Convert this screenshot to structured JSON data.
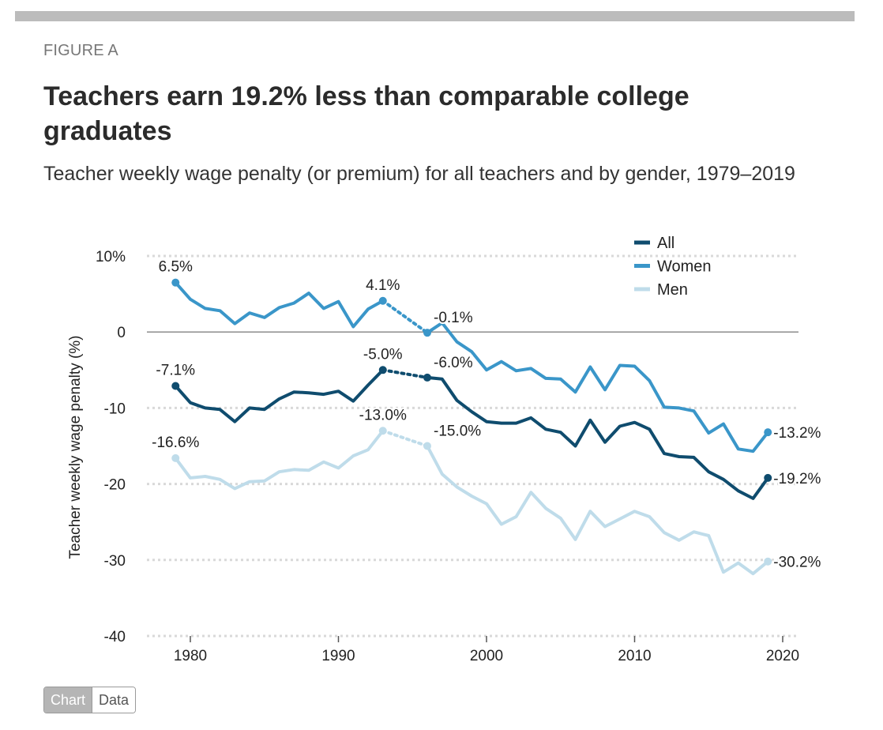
{
  "header": {
    "figure_label": "FIGURE A",
    "title": "Teachers earn 19.2% less than comparable college graduates",
    "subtitle": "Teacher weekly wage penalty (or premium) for all teachers and by gender, 1979–2019"
  },
  "controls": {
    "chart_label": "Chart",
    "data_label": "Data"
  },
  "colors": {
    "all": "#0f4c6e",
    "women": "#3a96c9",
    "men": "#bfdcea",
    "grid": "#d9d9d9",
    "zero": "#8c8c8c"
  },
  "chart_data": {
    "type": "line",
    "title": "Teachers earn 19.2% less than comparable college graduates",
    "xlabel": "",
    "ylabel": "Teacher weekly wage penalty (%)",
    "xlim": [
      1977,
      2022
    ],
    "ylim": [
      -40,
      10
    ],
    "x_ticks": [
      "1980",
      "1990",
      "2000",
      "2010",
      "2020"
    ],
    "x_tick_values": [
      1980,
      1990,
      2000,
      2010,
      2020
    ],
    "y_ticks": [
      "10%",
      "0",
      "-10",
      "-20",
      "-30",
      "-40"
    ],
    "y_tick_values": [
      10,
      0,
      -10,
      -20,
      -30,
      -40
    ],
    "gap_years": [
      1994,
      1995
    ],
    "legend": [
      "All",
      "Women",
      "Men"
    ],
    "legend_position": "top-right",
    "series": [
      {
        "name": "All",
        "key": "all",
        "x": [
          1979,
          1980,
          1981,
          1982,
          1983,
          1984,
          1985,
          1986,
          1987,
          1988,
          1989,
          1990,
          1991,
          1992,
          1993,
          1996,
          1997,
          1998,
          1999,
          2000,
          2001,
          2002,
          2003,
          2004,
          2005,
          2006,
          2007,
          2008,
          2009,
          2010,
          2011,
          2012,
          2013,
          2014,
          2015,
          2016,
          2017,
          2018,
          2019
        ],
        "values": [
          -7.1,
          -9.3,
          -10.0,
          -10.2,
          -11.8,
          -10.0,
          -10.2,
          -8.8,
          -7.9,
          -8.0,
          -8.2,
          -7.8,
          -9.1,
          -7.0,
          -5.0,
          -6.0,
          -6.2,
          -9.0,
          -10.5,
          -11.8,
          -12.0,
          -12.0,
          -11.3,
          -12.8,
          -13.2,
          -15.0,
          -11.6,
          -14.5,
          -12.4,
          -11.9,
          -12.8,
          -16.0,
          -16.4,
          -16.5,
          -18.4,
          -19.4,
          -20.9,
          -21.9,
          -19.2
        ],
        "labels": [
          {
            "x": 1979,
            "text": "-7.1%",
            "pos": "above"
          },
          {
            "x": 1993,
            "text": "-5.0%",
            "pos": "above"
          },
          {
            "x": 1996,
            "text": "-6.0%",
            "pos": "right-above"
          },
          {
            "x": 2019,
            "text": "-19.2%",
            "pos": "right"
          }
        ]
      },
      {
        "name": "Women",
        "key": "women",
        "x": [
          1979,
          1980,
          1981,
          1982,
          1983,
          1984,
          1985,
          1986,
          1987,
          1988,
          1989,
          1990,
          1991,
          1992,
          1993,
          1996,
          1997,
          1998,
          1999,
          2000,
          2001,
          2002,
          2003,
          2004,
          2005,
          2006,
          2007,
          2008,
          2009,
          2010,
          2011,
          2012,
          2013,
          2014,
          2015,
          2016,
          2017,
          2018,
          2019
        ],
        "values": [
          6.5,
          4.3,
          3.1,
          2.8,
          1.1,
          2.5,
          1.9,
          3.2,
          3.8,
          5.1,
          3.1,
          4.0,
          0.7,
          3.0,
          4.1,
          -0.1,
          1.2,
          -1.3,
          -2.6,
          -5.0,
          -3.9,
          -5.1,
          -4.8,
          -6.1,
          -6.2,
          -7.9,
          -4.6,
          -7.6,
          -4.4,
          -4.5,
          -6.4,
          -9.9,
          -10.0,
          -10.4,
          -13.3,
          -12.1,
          -15.4,
          -15.7,
          -13.2
        ],
        "labels": [
          {
            "x": 1979,
            "text": "6.5%",
            "pos": "above"
          },
          {
            "x": 1993,
            "text": "4.1%",
            "pos": "above"
          },
          {
            "x": 1996,
            "text": "-0.1%",
            "pos": "right-above"
          },
          {
            "x": 2019,
            "text": "-13.2%",
            "pos": "right"
          }
        ]
      },
      {
        "name": "Men",
        "key": "men",
        "x": [
          1979,
          1980,
          1981,
          1982,
          1983,
          1984,
          1985,
          1986,
          1987,
          1988,
          1989,
          1990,
          1991,
          1992,
          1993,
          1996,
          1997,
          1998,
          1999,
          2000,
          2001,
          2002,
          2003,
          2004,
          2005,
          2006,
          2007,
          2008,
          2009,
          2010,
          2011,
          2012,
          2013,
          2014,
          2015,
          2016,
          2017,
          2018,
          2019
        ],
        "values": [
          -16.6,
          -19.2,
          -19.0,
          -19.4,
          -20.6,
          -19.7,
          -19.6,
          -18.4,
          -18.1,
          -18.2,
          -17.1,
          -17.9,
          -16.3,
          -15.5,
          -13.0,
          -15.0,
          -18.7,
          -20.4,
          -21.6,
          -22.6,
          -25.3,
          -24.3,
          -21.1,
          -23.2,
          -24.5,
          -27.3,
          -23.6,
          -25.6,
          -24.6,
          -23.6,
          -24.3,
          -26.4,
          -27.4,
          -26.3,
          -26.8,
          -31.6,
          -30.4,
          -31.8,
          -30.2
        ],
        "labels": [
          {
            "x": 1979,
            "text": "-16.6%",
            "pos": "above"
          },
          {
            "x": 1993,
            "text": "-13.0%",
            "pos": "above"
          },
          {
            "x": 1996,
            "text": "-15.0%",
            "pos": "right-above"
          },
          {
            "x": 2019,
            "text": "-30.2%",
            "pos": "right"
          }
        ]
      }
    ]
  }
}
